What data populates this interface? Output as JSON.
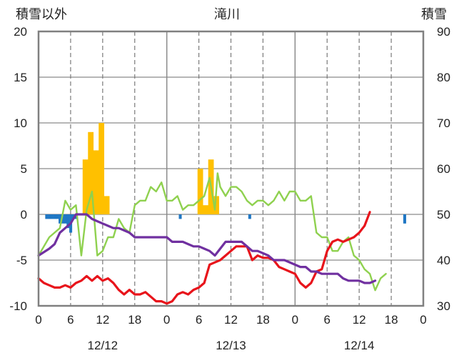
{
  "chart_data": {
    "type": "bar",
    "title": "滝川",
    "y_left_label": "積雪以外",
    "y_right_label": "積雪",
    "y_left_range": [
      -10,
      20
    ],
    "y_right_range": [
      30,
      90
    ],
    "y_left_ticks": [
      "20",
      "15",
      "10",
      "5",
      "0",
      "-5",
      "-10"
    ],
    "y_right_ticks": [
      "90",
      "80",
      "70",
      "60",
      "50",
      "40",
      "30"
    ],
    "x_hour_ticks": [
      "0",
      "6",
      "12",
      "18",
      "0",
      "6",
      "12",
      "18",
      "0",
      "6",
      "12",
      "18",
      "0"
    ],
    "x_date_labels": [
      "12/12",
      "12/13",
      "12/14"
    ],
    "x_range_hours": [
      0,
      72
    ],
    "grid": "dashed vertical every 6h, solid at day boundaries; horizontal lines at each 5 units",
    "colors": {
      "snowfall_bars": "#FFC000",
      "precip_bars": "#1F77C4",
      "temperature": "#E8141B",
      "other_line": "#8FD14F",
      "snow_depth": "#7030A0"
    },
    "series": [
      {
        "kind": "bar",
        "axis": "left",
        "color": "#FFC000",
        "points": [
          [
            8.5,
            6
          ],
          [
            9,
            6
          ],
          [
            9.5,
            9
          ],
          [
            10,
            9
          ],
          [
            10.5,
            7
          ],
          [
            11,
            7
          ],
          [
            11.5,
            10
          ],
          [
            12,
            10
          ],
          [
            12.5,
            2
          ],
          [
            13,
            2
          ],
          [
            30,
            5
          ],
          [
            30.5,
            5
          ],
          [
            31,
            1
          ],
          [
            31.5,
            1
          ],
          [
            32,
            6
          ],
          [
            32.5,
            6
          ],
          [
            33,
            2
          ],
          [
            33.5,
            2
          ]
        ]
      },
      {
        "kind": "bar",
        "axis": "left",
        "color": "#1F77C4",
        "points": [
          [
            1.5,
            -0.5
          ],
          [
            2,
            -0.5
          ],
          [
            2.5,
            -0.5
          ],
          [
            3,
            -0.5
          ],
          [
            3.5,
            -0.5
          ],
          [
            4,
            -1
          ],
          [
            4.5,
            -1
          ],
          [
            5,
            -1
          ],
          [
            5.5,
            -1.5
          ],
          [
            6,
            -2
          ],
          [
            6.5,
            -0.5
          ],
          [
            7,
            -0.5
          ],
          [
            26.5,
            -0.5
          ],
          [
            39.5,
            -0.5
          ],
          [
            68.5,
            -1
          ]
        ]
      },
      {
        "kind": "line",
        "axis": "left",
        "color": "#8FD14F",
        "points": [
          [
            0,
            -4.5
          ],
          [
            2,
            -2.5
          ],
          [
            4,
            -1.5
          ],
          [
            5,
            1.5
          ],
          [
            6,
            0.5
          ],
          [
            7,
            1.0
          ],
          [
            8,
            -4.5
          ],
          [
            9,
            0.5
          ],
          [
            10,
            2.5
          ],
          [
            11,
            -4.5
          ],
          [
            12,
            -4
          ],
          [
            13,
            -2.5
          ],
          [
            14,
            -2.5
          ],
          [
            15,
            -0.5
          ],
          [
            16,
            -1.5
          ],
          [
            17,
            -2
          ],
          [
            18,
            1
          ],
          [
            19,
            1.5
          ],
          [
            20,
            1.5
          ],
          [
            21,
            3
          ],
          [
            22,
            2.5
          ],
          [
            23,
            3.5
          ],
          [
            24,
            1.5
          ],
          [
            25,
            1.5
          ],
          [
            26,
            2
          ],
          [
            27,
            0.5
          ],
          [
            28,
            1
          ],
          [
            29,
            1
          ],
          [
            30,
            1.5
          ],
          [
            31,
            2
          ],
          [
            32,
            4
          ],
          [
            33,
            0.5
          ],
          [
            33.5,
            4.5
          ],
          [
            34,
            3
          ],
          [
            35,
            2
          ],
          [
            36,
            3
          ],
          [
            37,
            3
          ],
          [
            38,
            2.5
          ],
          [
            39,
            1.5
          ],
          [
            40,
            1
          ],
          [
            41,
            1.5
          ],
          [
            42,
            1.5
          ],
          [
            43,
            1
          ],
          [
            44,
            1.5
          ],
          [
            45,
            2.5
          ],
          [
            46,
            1.5
          ],
          [
            47,
            2.5
          ],
          [
            48,
            2.5
          ],
          [
            49,
            1.5
          ],
          [
            50,
            1.5
          ],
          [
            51,
            2
          ],
          [
            52,
            -2
          ],
          [
            53,
            -2.5
          ],
          [
            54,
            -2.5
          ],
          [
            55,
            -4
          ],
          [
            56,
            -4
          ],
          [
            57,
            -3
          ],
          [
            58,
            -2.5
          ],
          [
            59,
            -4.5
          ],
          [
            60,
            -5
          ],
          [
            61,
            -6
          ],
          [
            62,
            -6.5
          ],
          [
            63,
            -8.3
          ],
          [
            64,
            -7
          ],
          [
            65,
            -6.5
          ]
        ]
      },
      {
        "kind": "line",
        "axis": "right",
        "color": "#E8141B",
        "points": [
          [
            0,
            36
          ],
          [
            1,
            35
          ],
          [
            2,
            34.5
          ],
          [
            3,
            34
          ],
          [
            4,
            34
          ],
          [
            5,
            34.5
          ],
          [
            6,
            34
          ],
          [
            7,
            35
          ],
          [
            8,
            35.5
          ],
          [
            9,
            36.5
          ],
          [
            10,
            35.5
          ],
          [
            11,
            36.5
          ],
          [
            12,
            35.5
          ],
          [
            13,
            36
          ],
          [
            14,
            35
          ],
          [
            15,
            33.5
          ],
          [
            16,
            32.5
          ],
          [
            17,
            33.5
          ],
          [
            18,
            32.5
          ],
          [
            19,
            32.5
          ],
          [
            20,
            33
          ],
          [
            21,
            32
          ],
          [
            22,
            31
          ],
          [
            23,
            31
          ],
          [
            24,
            30.5
          ],
          [
            25,
            31
          ],
          [
            26,
            32.5
          ],
          [
            27,
            33
          ],
          [
            28,
            32.5
          ],
          [
            29,
            33.5
          ],
          [
            30,
            34
          ],
          [
            31,
            35
          ],
          [
            32,
            39
          ],
          [
            33,
            39.5
          ],
          [
            34,
            40
          ],
          [
            35,
            41
          ],
          [
            36,
            42
          ],
          [
            37,
            43
          ],
          [
            38,
            43
          ],
          [
            39,
            43
          ],
          [
            40,
            40
          ],
          [
            41,
            41
          ],
          [
            42,
            40.5
          ],
          [
            43,
            40.5
          ],
          [
            44,
            40
          ],
          [
            45,
            38.5
          ],
          [
            46,
            38
          ],
          [
            47,
            37.5
          ],
          [
            48,
            37
          ],
          [
            49,
            35
          ],
          [
            50,
            34
          ],
          [
            51,
            35
          ],
          [
            52,
            37.5
          ],
          [
            53,
            38
          ],
          [
            54,
            42
          ],
          [
            55,
            44
          ],
          [
            56,
            44.5
          ],
          [
            57,
            44
          ],
          [
            58,
            44.5
          ],
          [
            59,
            45
          ],
          [
            60,
            46
          ],
          [
            61,
            47.5
          ],
          [
            62,
            50.5
          ]
        ]
      },
      {
        "kind": "line",
        "axis": "right",
        "color": "#7030A0",
        "points": [
          [
            0,
            41
          ],
          [
            2,
            42.5
          ],
          [
            3,
            43.5
          ],
          [
            4,
            46
          ],
          [
            5,
            47
          ],
          [
            6,
            48
          ],
          [
            7,
            50
          ],
          [
            8,
            50
          ],
          [
            9,
            50
          ],
          [
            10,
            49
          ],
          [
            11,
            48.5
          ],
          [
            12,
            48
          ],
          [
            13,
            47.5
          ],
          [
            14,
            47
          ],
          [
            15,
            47
          ],
          [
            16,
            46.5
          ],
          [
            17,
            46
          ],
          [
            18,
            45
          ],
          [
            20,
            45
          ],
          [
            22,
            45
          ],
          [
            24,
            45
          ],
          [
            25,
            44
          ],
          [
            26,
            44
          ],
          [
            27,
            44
          ],
          [
            28,
            43.5
          ],
          [
            29,
            43
          ],
          [
            30,
            43
          ],
          [
            31,
            42.5
          ],
          [
            32,
            42
          ],
          [
            33,
            41
          ],
          [
            34,
            42.5
          ],
          [
            35,
            44
          ],
          [
            36,
            44
          ],
          [
            37,
            44
          ],
          [
            38,
            44
          ],
          [
            39,
            43
          ],
          [
            40,
            42
          ],
          [
            41,
            42
          ],
          [
            42,
            41.5
          ],
          [
            43,
            41
          ],
          [
            44,
            40
          ],
          [
            46,
            40
          ],
          [
            48,
            39
          ],
          [
            49,
            38.5
          ],
          [
            50,
            38.5
          ],
          [
            51,
            37.5
          ],
          [
            52,
            37.5
          ],
          [
            53,
            37
          ],
          [
            54,
            37
          ],
          [
            56,
            37
          ],
          [
            57,
            36
          ],
          [
            58,
            35.5
          ],
          [
            60,
            35.5
          ],
          [
            61,
            35
          ],
          [
            62,
            35
          ],
          [
            63,
            35.5
          ]
        ]
      }
    ]
  }
}
